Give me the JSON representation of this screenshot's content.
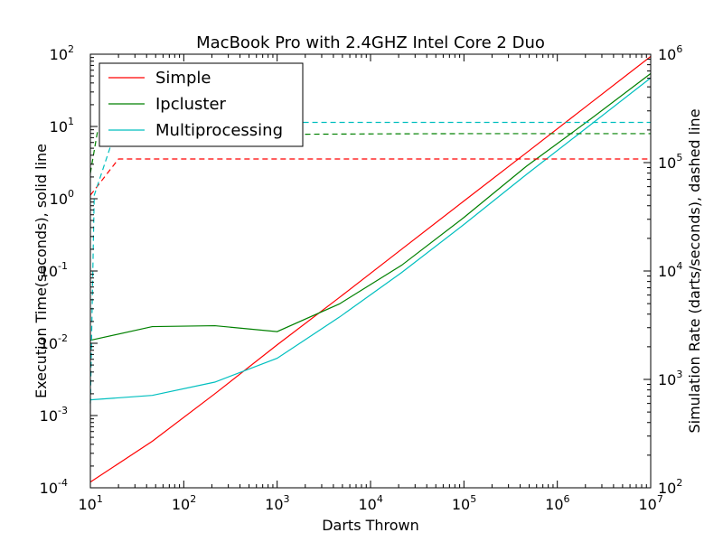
{
  "chart_data": {
    "type": "line",
    "title": "MacBook Pro with 2.4GHZ Intel Core 2 Duo",
    "xlabel": "Darts Thrown",
    "ylabel": "Execution Time(seconds), solid line",
    "y2label": "Simulation Rate (darts/seconds), dashed line",
    "xscale": "log",
    "yscale": "log",
    "y2scale": "log",
    "xlim": [
      10,
      10000000
    ],
    "ylim": [
      0.0001,
      100
    ],
    "y2lim": [
      100,
      1000000
    ],
    "x_ticks": [
      {
        "base": "10",
        "exp": "1",
        "value": 10
      },
      {
        "base": "10",
        "exp": "2",
        "value": 100
      },
      {
        "base": "10",
        "exp": "3",
        "value": 1000
      },
      {
        "base": "10",
        "exp": "4",
        "value": 10000
      },
      {
        "base": "10",
        "exp": "5",
        "value": 100000
      },
      {
        "base": "10",
        "exp": "6",
        "value": 1000000
      },
      {
        "base": "10",
        "exp": "7",
        "value": 10000000
      }
    ],
    "y_ticks": [
      {
        "base": "10",
        "exp": "-4",
        "value": 0.0001
      },
      {
        "base": "10",
        "exp": "-3",
        "value": 0.001
      },
      {
        "base": "10",
        "exp": "-2",
        "value": 0.01
      },
      {
        "base": "10",
        "exp": "-1",
        "value": 0.1
      },
      {
        "base": "10",
        "exp": "0",
        "value": 1
      },
      {
        "base": "10",
        "exp": "1",
        "value": 10
      },
      {
        "base": "10",
        "exp": "2",
        "value": 100
      }
    ],
    "y2_ticks": [
      {
        "base": "10",
        "exp": "2",
        "value": 100
      },
      {
        "base": "10",
        "exp": "3",
        "value": 1000
      },
      {
        "base": "10",
        "exp": "4",
        "value": 10000
      },
      {
        "base": "10",
        "exp": "5",
        "value": 100000
      },
      {
        "base": "10",
        "exp": "6",
        "value": 1000000
      }
    ],
    "legend_position": "upper-left",
    "grid": false,
    "x": [
      10,
      46,
      215,
      1000,
      4640,
      21500,
      100000,
      464000,
      2150000,
      10000000
    ],
    "series": [
      {
        "name": "Simple",
        "color": "#ff0000",
        "style": "solid",
        "axis": "left",
        "values": [
          0.00012,
          0.00044,
          0.002,
          0.0095,
          0.043,
          0.2,
          0.93,
          4.3,
          20,
          93
        ]
      },
      {
        "name": "Ipcluster",
        "color": "#008000",
        "style": "solid",
        "axis": "left",
        "values": [
          0.011,
          0.017,
          0.0175,
          0.0145,
          0.035,
          0.12,
          0.55,
          2.8,
          12,
          54
        ]
      },
      {
        "name": "Multiprocessing",
        "color": "#00bfbf",
        "style": "solid",
        "axis": "left",
        "values": [
          0.00165,
          0.0019,
          0.0029,
          0.0062,
          0.023,
          0.095,
          0.44,
          2.15,
          10,
          47
        ]
      },
      {
        "name": "",
        "color": "#ff0000",
        "style": "dashed",
        "axis": "right",
        "x": [
          10,
          20,
          100,
          1000,
          10000,
          100000,
          1000000,
          10000000
        ],
        "values": [
          50000,
          108000,
          108000,
          108000,
          108000,
          108000,
          108000,
          108000
        ]
      },
      {
        "name": "",
        "color": "#008000",
        "style": "dashed",
        "axis": "right",
        "x": [
          10,
          12,
          20,
          46,
          215,
          1000,
          10000,
          100000,
          1000000,
          10000000
        ],
        "values": [
          80000,
          200000,
          165000,
          170000,
          180000,
          182000,
          184000,
          185000,
          185000,
          185000
        ]
      },
      {
        "name": "",
        "color": "#00bfbf",
        "style": "dashed",
        "axis": "right",
        "x": [
          10,
          11,
          20,
          100,
          1000,
          10000,
          100000,
          1000000,
          10000000
        ],
        "values": [
          600,
          50000,
          235000,
          235000,
          235000,
          235000,
          235000,
          235000,
          235000
        ]
      }
    ]
  }
}
